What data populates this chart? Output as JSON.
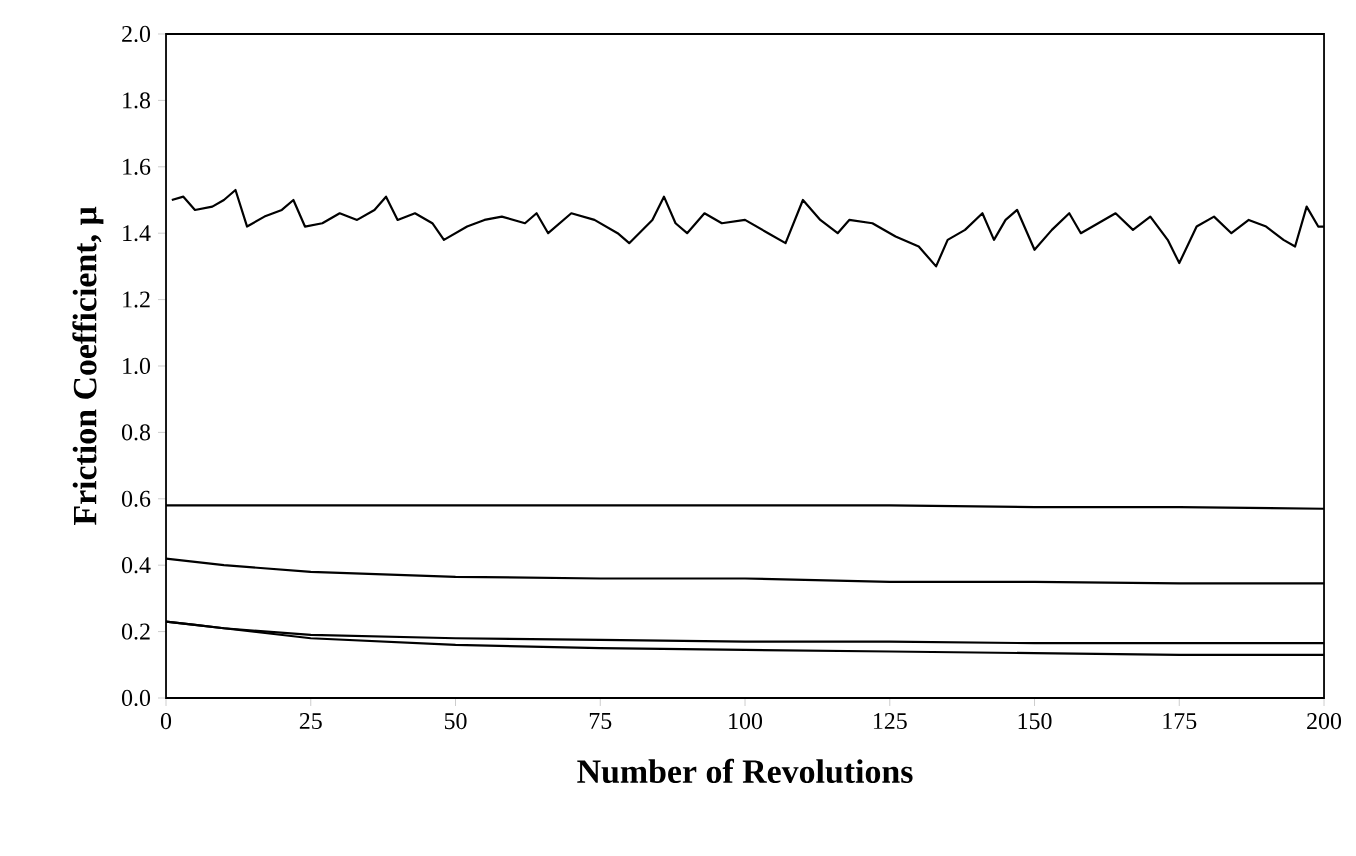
{
  "chart_data": {
    "type": "line",
    "xlabel": "Number of Revolutions",
    "ylabel": "Friction Coefficient, μ",
    "marker": "none",
    "line_style": "solid",
    "xlim": [
      0,
      200
    ],
    "ylim": [
      0,
      2.0
    ],
    "xticks": [
      0,
      25,
      50,
      75,
      100,
      125,
      150,
      175,
      200
    ],
    "yticks": [
      {
        "value": 0,
        "label": "0.0"
      },
      {
        "value": 0.2,
        "label": "0.2"
      },
      {
        "value": 0.4,
        "label": "0.4"
      },
      {
        "value": 0.6,
        "label": "0.6"
      },
      {
        "value": 0.8,
        "label": "0.8"
      },
      {
        "value": 1.0,
        "label": "1.0"
      },
      {
        "value": 1.2,
        "label": "1.2"
      },
      {
        "value": 1.4,
        "label": "1.4"
      },
      {
        "value": 1.6,
        "label": "1.6"
      },
      {
        "value": 1.8,
        "label": "1.8"
      },
      {
        "value": 2.0,
        "label": "2.0"
      }
    ],
    "series": [
      {
        "color": "#000000",
        "x": [
          1,
          3,
          5,
          8,
          10,
          12,
          14,
          17,
          20,
          22,
          24,
          27,
          30,
          33,
          36,
          38,
          40,
          43,
          46,
          48,
          52,
          55,
          58,
          62,
          64,
          66,
          70,
          74,
          78,
          80,
          84,
          86,
          88,
          90,
          93,
          96,
          100,
          104,
          107,
          110,
          113,
          116,
          118,
          122,
          126,
          130,
          133,
          135,
          138,
          141,
          143,
          145,
          147,
          150,
          153,
          156,
          158,
          161,
          164,
          167,
          170,
          173,
          175,
          178,
          181,
          184,
          187,
          190,
          193,
          195,
          197,
          199,
          200
        ],
        "values": [
          1.5,
          1.51,
          1.47,
          1.48,
          1.5,
          1.53,
          1.42,
          1.45,
          1.47,
          1.5,
          1.42,
          1.43,
          1.46,
          1.44,
          1.47,
          1.51,
          1.44,
          1.46,
          1.43,
          1.38,
          1.42,
          1.44,
          1.45,
          1.43,
          1.46,
          1.4,
          1.46,
          1.44,
          1.4,
          1.37,
          1.44,
          1.51,
          1.43,
          1.4,
          1.46,
          1.43,
          1.44,
          1.4,
          1.37,
          1.5,
          1.44,
          1.4,
          1.44,
          1.43,
          1.39,
          1.36,
          1.3,
          1.38,
          1.41,
          1.46,
          1.38,
          1.44,
          1.47,
          1.35,
          1.41,
          1.46,
          1.4,
          1.43,
          1.46,
          1.41,
          1.45,
          1.38,
          1.31,
          1.42,
          1.45,
          1.4,
          1.44,
          1.42,
          1.38,
          1.36,
          1.48,
          1.42,
          1.42
        ]
      },
      {
        "color": "#000000",
        "x": [
          0,
          25,
          50,
          75,
          100,
          125,
          150,
          175,
          200
        ],
        "values": [
          0.58,
          0.58,
          0.58,
          0.58,
          0.58,
          0.58,
          0.575,
          0.575,
          0.57
        ]
      },
      {
        "color": "#000000",
        "x": [
          0,
          5,
          10,
          25,
          50,
          75,
          100,
          125,
          150,
          175,
          200
        ],
        "values": [
          0.42,
          0.41,
          0.4,
          0.38,
          0.365,
          0.36,
          0.36,
          0.35,
          0.35,
          0.345,
          0.345
        ]
      },
      {
        "color": "#000000",
        "x": [
          0,
          5,
          10,
          25,
          50,
          75,
          100,
          125,
          150,
          175,
          200
        ],
        "values": [
          0.23,
          0.22,
          0.21,
          0.19,
          0.18,
          0.175,
          0.17,
          0.17,
          0.165,
          0.165,
          0.165
        ]
      },
      {
        "color": "#000000",
        "x": [
          0,
          5,
          10,
          25,
          50,
          75,
          100,
          125,
          150,
          175,
          200
        ],
        "values": [
          0.23,
          0.22,
          0.21,
          0.18,
          0.16,
          0.15,
          0.145,
          0.14,
          0.135,
          0.13,
          0.13
        ]
      }
    ]
  }
}
